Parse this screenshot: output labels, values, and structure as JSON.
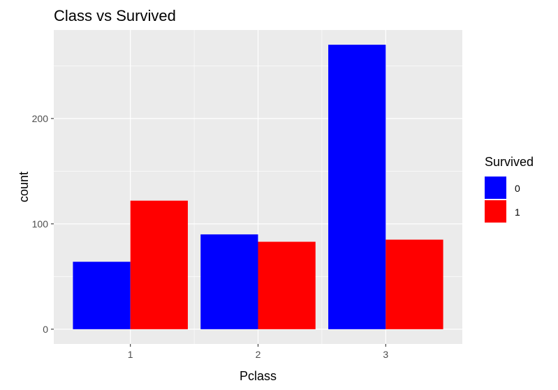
{
  "chart_data": {
    "type": "bar",
    "title": "Class vs Survived",
    "xlabel": "Pclass",
    "ylabel": "count",
    "categories": [
      "1",
      "2",
      "3"
    ],
    "series": [
      {
        "name": "0",
        "color": "#0000ff",
        "values": [
          64,
          90,
          270
        ]
      },
      {
        "name": "1",
        "color": "#ff0000",
        "values": [
          122,
          83,
          85
        ]
      }
    ],
    "ylim": [
      -14,
      284
    ],
    "yticks": [
      0,
      100,
      200
    ],
    "legend": {
      "title": "Survived",
      "position": "right"
    },
    "grid": true,
    "panel_background": "#ebebeb",
    "grid_color": "#ffffff"
  }
}
